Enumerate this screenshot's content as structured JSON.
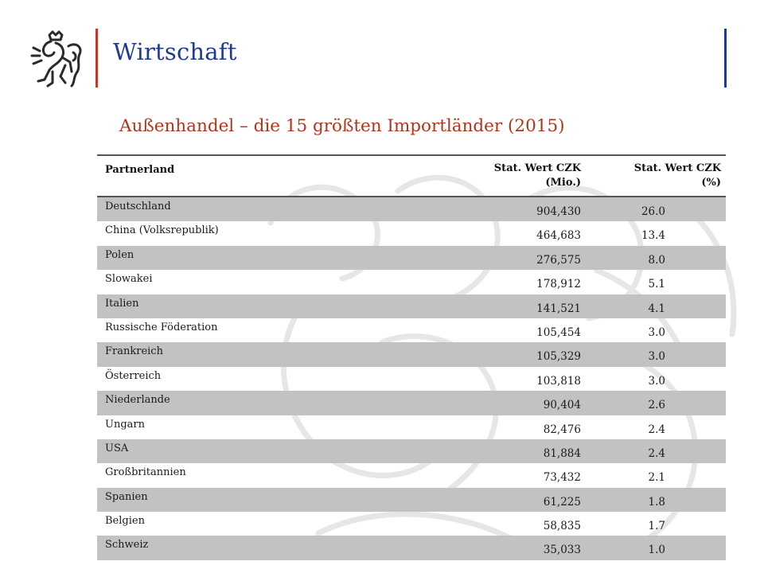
{
  "header": {
    "section_title": "Wirtschaft",
    "logo_icon": "bohemian-lion-icon",
    "accent_red": "#c0392b",
    "accent_blue": "#1f3b8f"
  },
  "subtitle": "Außenhandel –  die 15 größten Importländer (2015)",
  "table": {
    "columns": {
      "partner": "Partnerland",
      "value_czk_line1": "Stat. Wert CZK",
      "value_czk_line2": "(Mio.)",
      "share_line1": "Stat. Wert CZK",
      "share_line2": "(%)"
    },
    "rows": [
      {
        "partner": "Deutschland",
        "value": "904,430",
        "share": "26.0"
      },
      {
        "partner": "China (Volksrepublik)",
        "value": "464,683",
        "share": "13.4"
      },
      {
        "partner": "Polen",
        "value": "276,575",
        "share": "8.0"
      },
      {
        "partner": "Slowakei",
        "value": "178,912",
        "share": "5.1"
      },
      {
        "partner": "Italien",
        "value": "141,521",
        "share": "4.1"
      },
      {
        "partner": "Russische Föderation",
        "value": "105,454",
        "share": "3.0"
      },
      {
        "partner": "Frankreich",
        "value": "105,329",
        "share": "3.0"
      },
      {
        "partner": "Österreich",
        "value": "103,818",
        "share": "3.0"
      },
      {
        "partner": "Niederlande",
        "value": "90,404",
        "share": "2.6"
      },
      {
        "partner": "Ungarn",
        "value": "82,476",
        "share": "2.4"
      },
      {
        "partner": "USA",
        "value": "81,884",
        "share": "2.4"
      },
      {
        "partner": "Großbritannien",
        "value": "73,432",
        "share": "2.1"
      },
      {
        "partner": "Spanien",
        "value": "61,225",
        "share": "1.8"
      },
      {
        "partner": "Belgien",
        "value": "58,835",
        "share": "1.7"
      },
      {
        "partner": "Schweiz",
        "value": "35,033",
        "share": "1.0"
      }
    ],
    "stripe_color": "#c2c2c2"
  }
}
